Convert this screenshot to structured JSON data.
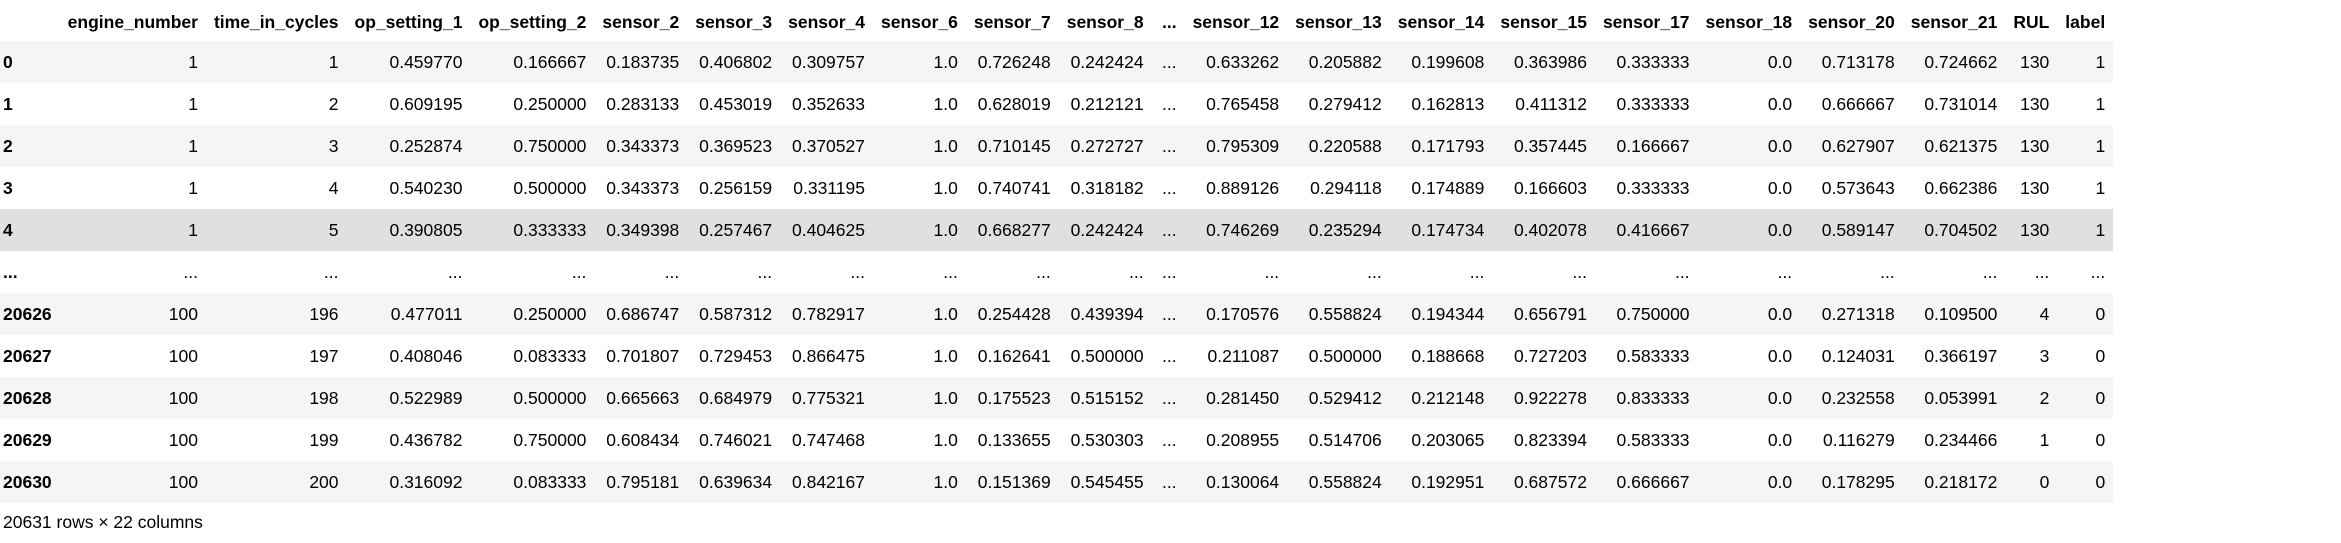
{
  "table": {
    "columns": [
      "engine_number",
      "time_in_cycles",
      "op_setting_1",
      "op_setting_2",
      "sensor_2",
      "sensor_3",
      "sensor_4",
      "sensor_6",
      "sensor_7",
      "sensor_8",
      "...",
      "sensor_12",
      "sensor_13",
      "sensor_14",
      "sensor_15",
      "sensor_17",
      "sensor_18",
      "sensor_20",
      "sensor_21",
      "RUL",
      "label"
    ],
    "rows": [
      {
        "index": "0",
        "cells": [
          "1",
          "1",
          "0.459770",
          "0.166667",
          "0.183735",
          "0.406802",
          "0.309757",
          "1.0",
          "0.726248",
          "0.242424",
          "...",
          "0.633262",
          "0.205882",
          "0.199608",
          "0.363986",
          "0.333333",
          "0.0",
          "0.713178",
          "0.724662",
          "130",
          "1"
        ]
      },
      {
        "index": "1",
        "cells": [
          "1",
          "2",
          "0.609195",
          "0.250000",
          "0.283133",
          "0.453019",
          "0.352633",
          "1.0",
          "0.628019",
          "0.212121",
          "...",
          "0.765458",
          "0.279412",
          "0.162813",
          "0.411312",
          "0.333333",
          "0.0",
          "0.666667",
          "0.731014",
          "130",
          "1"
        ]
      },
      {
        "index": "2",
        "cells": [
          "1",
          "3",
          "0.252874",
          "0.750000",
          "0.343373",
          "0.369523",
          "0.370527",
          "1.0",
          "0.710145",
          "0.272727",
          "...",
          "0.795309",
          "0.220588",
          "0.171793",
          "0.357445",
          "0.166667",
          "0.0",
          "0.627907",
          "0.621375",
          "130",
          "1"
        ]
      },
      {
        "index": "3",
        "cells": [
          "1",
          "4",
          "0.540230",
          "0.500000",
          "0.343373",
          "0.256159",
          "0.331195",
          "1.0",
          "0.740741",
          "0.318182",
          "...",
          "0.889126",
          "0.294118",
          "0.174889",
          "0.166603",
          "0.333333",
          "0.0",
          "0.573643",
          "0.662386",
          "130",
          "1"
        ]
      },
      {
        "index": "4",
        "cells": [
          "1",
          "5",
          "0.390805",
          "0.333333",
          "0.349398",
          "0.257467",
          "0.404625",
          "1.0",
          "0.668277",
          "0.242424",
          "...",
          "0.746269",
          "0.235294",
          "0.174734",
          "0.402078",
          "0.416667",
          "0.0",
          "0.589147",
          "0.704502",
          "130",
          "1"
        ]
      },
      {
        "index": "...",
        "cells": [
          "...",
          "...",
          "...",
          "...",
          "...",
          "...",
          "...",
          "...",
          "...",
          "...",
          "...",
          "...",
          "...",
          "...",
          "...",
          "...",
          "...",
          "...",
          "...",
          "...",
          "..."
        ]
      },
      {
        "index": "20626",
        "cells": [
          "100",
          "196",
          "0.477011",
          "0.250000",
          "0.686747",
          "0.587312",
          "0.782917",
          "1.0",
          "0.254428",
          "0.439394",
          "...",
          "0.170576",
          "0.558824",
          "0.194344",
          "0.656791",
          "0.750000",
          "0.0",
          "0.271318",
          "0.109500",
          "4",
          "0"
        ]
      },
      {
        "index": "20627",
        "cells": [
          "100",
          "197",
          "0.408046",
          "0.083333",
          "0.701807",
          "0.729453",
          "0.866475",
          "1.0",
          "0.162641",
          "0.500000",
          "...",
          "0.211087",
          "0.500000",
          "0.188668",
          "0.727203",
          "0.583333",
          "0.0",
          "0.124031",
          "0.366197",
          "3",
          "0"
        ]
      },
      {
        "index": "20628",
        "cells": [
          "100",
          "198",
          "0.522989",
          "0.500000",
          "0.665663",
          "0.684979",
          "0.775321",
          "1.0",
          "0.175523",
          "0.515152",
          "...",
          "0.281450",
          "0.529412",
          "0.212148",
          "0.922278",
          "0.833333",
          "0.0",
          "0.232558",
          "0.053991",
          "2",
          "0"
        ]
      },
      {
        "index": "20629",
        "cells": [
          "100",
          "199",
          "0.436782",
          "0.750000",
          "0.608434",
          "0.746021",
          "0.747468",
          "1.0",
          "0.133655",
          "0.530303",
          "...",
          "0.208955",
          "0.514706",
          "0.203065",
          "0.823394",
          "0.583333",
          "0.0",
          "0.116279",
          "0.234466",
          "1",
          "0"
        ]
      },
      {
        "index": "20630",
        "cells": [
          "100",
          "200",
          "0.316092",
          "0.083333",
          "0.795181",
          "0.639634",
          "0.842167",
          "1.0",
          "0.151369",
          "0.545455",
          "...",
          "0.130064",
          "0.558824",
          "0.192951",
          "0.687572",
          "0.666667",
          "0.0",
          "0.178295",
          "0.218172",
          "0",
          "0"
        ]
      }
    ],
    "hover_row_index": "4"
  },
  "footer": {
    "shape_text": "20631 rows × 22 columns"
  }
}
